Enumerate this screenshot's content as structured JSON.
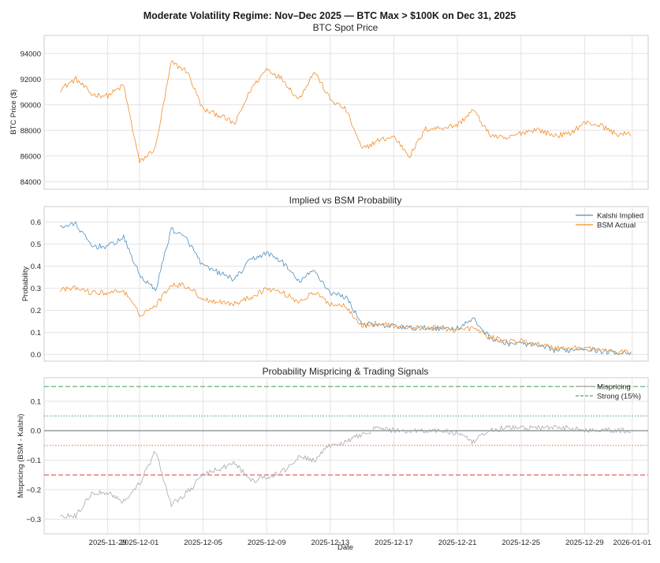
{
  "figure": {
    "title": "Moderate Volatility Regime: Nov–Dec 2025 — BTC Max > $100K on Dec 31, 2025",
    "xlabel": "Date"
  },
  "chart_data": [
    {
      "type": "line",
      "title": "BTC Spot Price",
      "ylabel": "BTC Price ($)",
      "ylim": [
        83400,
        95400
      ],
      "yticks": [
        84000,
        86000,
        88000,
        90000,
        92000,
        94000
      ],
      "ytick_labels": [
        "84000",
        "86000",
        "88000",
        "90000",
        "92000",
        "94000"
      ],
      "grid": true,
      "series": [
        {
          "color": "#f28e2b",
          "x": [
            "2025-11-26",
            "2025-11-27",
            "2025-11-28",
            "2025-11-29",
            "2025-11-30",
            "2025-12-01",
            "2025-12-02",
            "2025-12-03",
            "2025-12-04",
            "2025-12-05",
            "2025-12-06",
            "2025-12-07",
            "2025-12-08",
            "2025-12-09",
            "2025-12-10",
            "2025-12-11",
            "2025-12-12",
            "2025-12-13",
            "2025-12-14",
            "2025-12-15",
            "2025-12-16",
            "2025-12-17",
            "2025-12-18",
            "2025-12-19",
            "2025-12-20",
            "2025-12-21",
            "2025-12-22",
            "2025-12-23",
            "2025-12-24",
            "2025-12-25",
            "2025-12-26",
            "2025-12-27",
            "2025-12-28",
            "2025-12-29",
            "2025-12-30",
            "2025-12-31"
          ],
          "values": [
            91200,
            92000,
            90800,
            90700,
            91500,
            85500,
            86600,
            93300,
            92600,
            89600,
            89200,
            88500,
            91200,
            92800,
            92000,
            90400,
            92600,
            90400,
            89600,
            86500,
            87200,
            87500,
            86000,
            88100,
            88200,
            88400,
            89600,
            87700,
            87300,
            87800,
            88100,
            87600,
            87700,
            88600,
            88400,
            87700
          ]
        }
      ]
    },
    {
      "type": "line",
      "title": "Implied vs BSM Probability",
      "ylabel": "Probability",
      "ylim": [
        -0.03,
        0.67
      ],
      "yticks": [
        0.0,
        0.1,
        0.2,
        0.3,
        0.4,
        0.5,
        0.6
      ],
      "ytick_labels": [
        "0.0",
        "0.1",
        "0.2",
        "0.3",
        "0.4",
        "0.5",
        "0.6"
      ],
      "legend": "top-right",
      "grid": true,
      "series": [
        {
          "name": "Kalshi Implied",
          "color": "#4c8fc0",
          "x": [
            "2025-11-26",
            "2025-11-27",
            "2025-11-28",
            "2025-11-29",
            "2025-11-30",
            "2025-12-01",
            "2025-12-02",
            "2025-12-03",
            "2025-12-04",
            "2025-12-05",
            "2025-12-06",
            "2025-12-07",
            "2025-12-08",
            "2025-12-09",
            "2025-12-10",
            "2025-12-11",
            "2025-12-12",
            "2025-12-13",
            "2025-12-14",
            "2025-12-15",
            "2025-12-16",
            "2025-12-17",
            "2025-12-18",
            "2025-12-19",
            "2025-12-20",
            "2025-12-21",
            "2025-12-22",
            "2025-12-23",
            "2025-12-24",
            "2025-12-25",
            "2025-12-26",
            "2025-12-27",
            "2025-12-28",
            "2025-12-29",
            "2025-12-30",
            "2025-12-31"
          ],
          "values": [
            0.58,
            0.59,
            0.49,
            0.49,
            0.53,
            0.36,
            0.29,
            0.57,
            0.52,
            0.4,
            0.37,
            0.34,
            0.43,
            0.46,
            0.42,
            0.33,
            0.38,
            0.28,
            0.26,
            0.14,
            0.13,
            0.13,
            0.12,
            0.12,
            0.12,
            0.12,
            0.16,
            0.08,
            0.05,
            0.05,
            0.04,
            0.02,
            0.02,
            0.03,
            0.015,
            0.01
          ]
        },
        {
          "name": "BSM Actual",
          "color": "#f28e2b",
          "x": [
            "2025-11-26",
            "2025-11-27",
            "2025-11-28",
            "2025-11-29",
            "2025-11-30",
            "2025-12-01",
            "2025-12-02",
            "2025-12-03",
            "2025-12-04",
            "2025-12-05",
            "2025-12-06",
            "2025-12-07",
            "2025-12-08",
            "2025-12-09",
            "2025-12-10",
            "2025-12-11",
            "2025-12-12",
            "2025-12-13",
            "2025-12-14",
            "2025-12-15",
            "2025-12-16",
            "2025-12-17",
            "2025-12-18",
            "2025-12-19",
            "2025-12-20",
            "2025-12-21",
            "2025-12-22",
            "2025-12-23",
            "2025-12-24",
            "2025-12-25",
            "2025-12-26",
            "2025-12-27",
            "2025-12-28",
            "2025-12-29",
            "2025-12-30",
            "2025-12-31"
          ],
          "values": [
            0.29,
            0.3,
            0.28,
            0.28,
            0.29,
            0.18,
            0.22,
            0.32,
            0.31,
            0.25,
            0.24,
            0.23,
            0.26,
            0.3,
            0.28,
            0.24,
            0.28,
            0.23,
            0.22,
            0.13,
            0.14,
            0.13,
            0.12,
            0.12,
            0.12,
            0.11,
            0.12,
            0.08,
            0.06,
            0.06,
            0.05,
            0.03,
            0.03,
            0.03,
            0.02,
            0.01
          ]
        }
      ]
    },
    {
      "type": "line",
      "title": "Probability Mispricing & Trading Signals",
      "ylabel": "Mispricing (BSM - Kalshi)",
      "ylim": [
        -0.35,
        0.18
      ],
      "yticks": [
        -0.3,
        -0.2,
        -0.1,
        0.0,
        0.1
      ],
      "ytick_labels": [
        "−0.3",
        "−0.2",
        "−0.1",
        "0.0",
        "0.1"
      ],
      "legend": "top-right",
      "grid": true,
      "series": [
        {
          "name": "Mispricing",
          "color": "#aaaaaa",
          "x": [
            "2025-11-26",
            "2025-11-27",
            "2025-11-28",
            "2025-11-29",
            "2025-11-30",
            "2025-12-01",
            "2025-12-02",
            "2025-12-03",
            "2025-12-04",
            "2025-12-05",
            "2025-12-06",
            "2025-12-07",
            "2025-12-08",
            "2025-12-09",
            "2025-12-10",
            "2025-12-11",
            "2025-12-12",
            "2025-12-13",
            "2025-12-14",
            "2025-12-15",
            "2025-12-16",
            "2025-12-17",
            "2025-12-18",
            "2025-12-19",
            "2025-12-20",
            "2025-12-21",
            "2025-12-22",
            "2025-12-23",
            "2025-12-24",
            "2025-12-25",
            "2025-12-26",
            "2025-12-27",
            "2025-12-28",
            "2025-12-29",
            "2025-12-30",
            "2025-12-31"
          ],
          "values": [
            -0.29,
            -0.29,
            -0.21,
            -0.21,
            -0.24,
            -0.18,
            -0.07,
            -0.25,
            -0.21,
            -0.15,
            -0.13,
            -0.11,
            -0.17,
            -0.16,
            -0.14,
            -0.09,
            -0.1,
            -0.05,
            -0.04,
            -0.01,
            0.01,
            0.0,
            0.0,
            0.0,
            0.0,
            -0.01,
            -0.04,
            0.0,
            0.01,
            0.01,
            0.01,
            0.01,
            0.01,
            0.0,
            0.005,
            0.0
          ]
        }
      ],
      "reference_lines": [
        {
          "name": "Strong (15%)",
          "y": 0.15,
          "color": "#55a868",
          "style": "dashed"
        },
        {
          "y": 0.05,
          "color": "#55a868",
          "style": "dotted"
        },
        {
          "y": 0.0,
          "color": "#888888",
          "style": "solid"
        },
        {
          "y": -0.05,
          "color": "#e07b54",
          "style": "dotted"
        },
        {
          "y": -0.15,
          "color": "#e05252",
          "style": "dashed"
        }
      ]
    }
  ],
  "x_axis": {
    "xlim": [
      "2025-11-25",
      "2026-01-02"
    ],
    "ticks": [
      "2025-11-29",
      "2025-12-01",
      "2025-12-05",
      "2025-12-09",
      "2025-12-13",
      "2025-12-17",
      "2025-12-21",
      "2025-12-25",
      "2025-12-29",
      "2026-01-01"
    ],
    "tick_labels": [
      "2025-11-29",
      "2025-12-01",
      "2025-12-05",
      "2025-12-09",
      "2025-12-13",
      "2025-12-17",
      "2025-12-21",
      "2025-12-25",
      "2025-12-29",
      "2026-01-01"
    ]
  }
}
